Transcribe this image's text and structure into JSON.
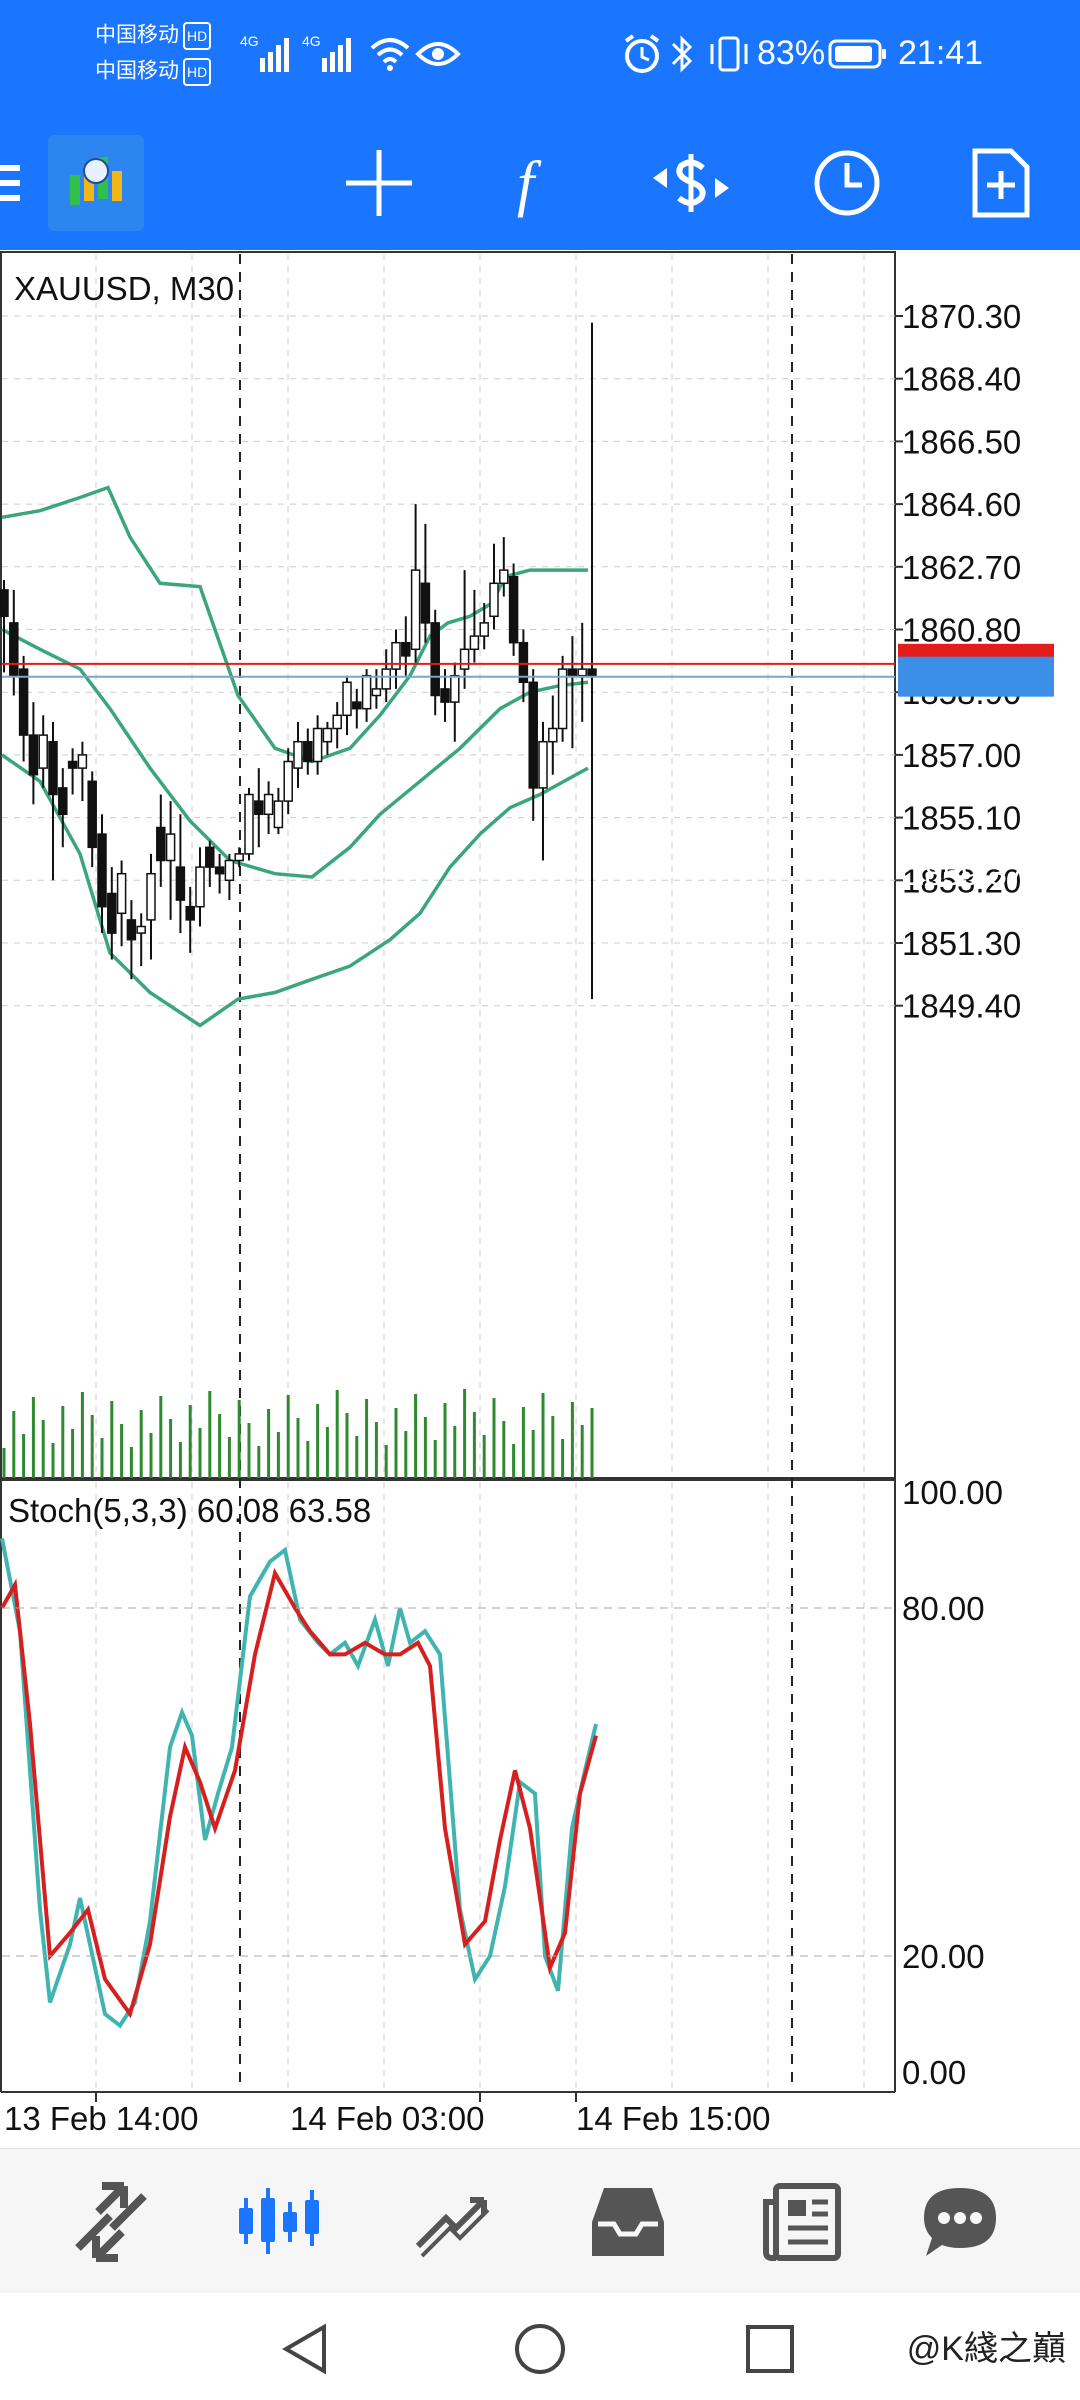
{
  "status_bar": {
    "carrier_1": "中国移动",
    "carrier_2": "中国移动",
    "hd_badge": "HD",
    "network_1": "4G",
    "network_2": "4G",
    "battery_percent": "83%",
    "time": "21:41"
  },
  "toolbar": {
    "icons": [
      "menu-icon",
      "app-logo-icon",
      "crosshair-icon",
      "indicators-icon",
      "trade-icon",
      "timeframe-icon",
      "add-document-icon"
    ],
    "indicators_label": "f"
  },
  "chart": {
    "symbol_label": "XAUUSD, M30",
    "price_levels": [
      "1870.30",
      "1868.40",
      "1866.50",
      "1864.60",
      "1862.70",
      "1860.80",
      "1858.90",
      "1857.00",
      "1855.10",
      "1853.20",
      "1851.30",
      "1849.40"
    ],
    "ask_price": "1859.76",
    "bid_price": "1859.37",
    "ask_color": "#e31b1b",
    "bid_color": "#3b8fe6",
    "bollinger_color": "#3aa67a",
    "volume_color": "#2f8a2f"
  },
  "stochastic": {
    "label": "Stoch(5,3,3) 60.08 63.58",
    "levels": [
      "100.00",
      "80.00",
      "20.00",
      "0.00"
    ],
    "main_color": "#3fb4b0",
    "signal_color": "#d62020"
  },
  "time_axis": {
    "labels": [
      "13 Feb 14:00",
      "14 Feb 03:00",
      "14 Feb 15:00"
    ]
  },
  "bottom_nav": {
    "items": [
      "quotes-icon",
      "chart-icon",
      "trade-icon",
      "history-icon",
      "news-icon",
      "chat-icon"
    ],
    "active": "chart-icon",
    "active_color": "#1a75ff"
  },
  "watermark": "@K綫之巔"
}
